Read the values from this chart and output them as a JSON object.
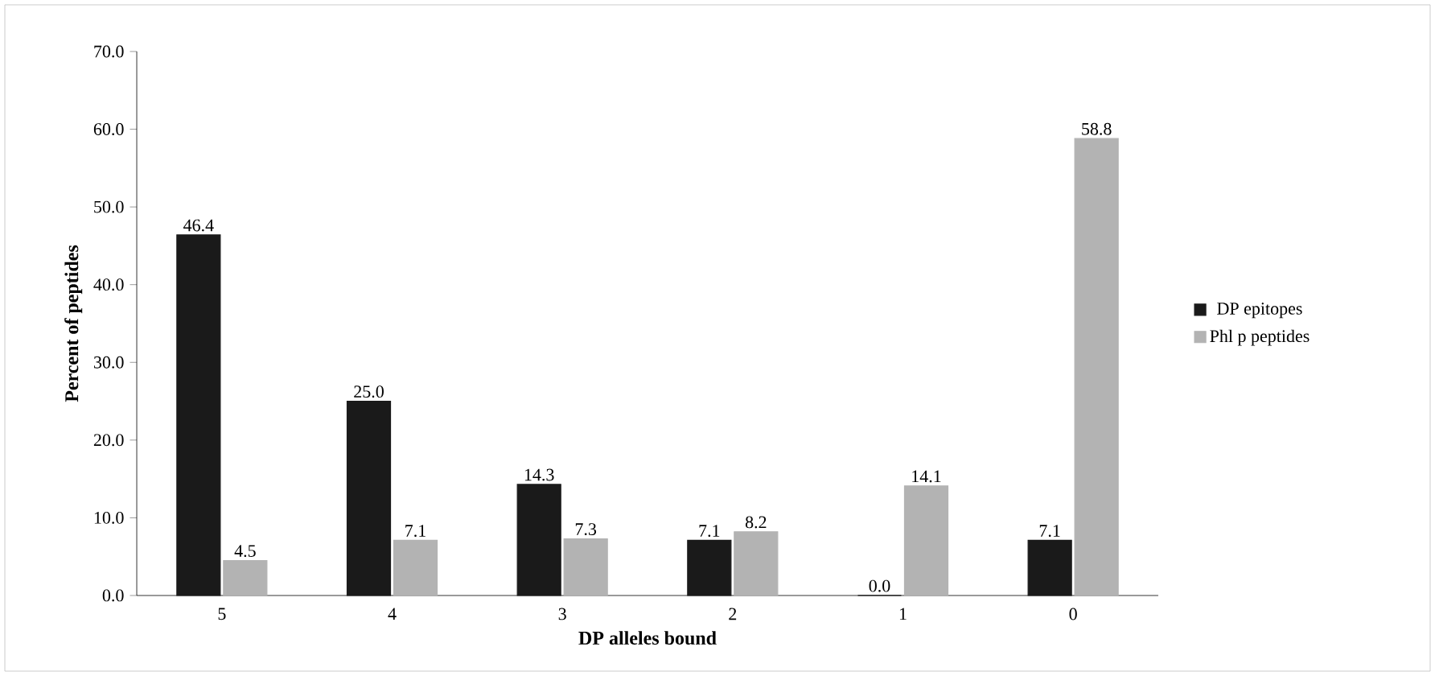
{
  "chart_data": {
    "type": "bar",
    "xlabel": "DP alleles bound",
    "ylabel": "Percent of peptides",
    "categories": [
      "5",
      "4",
      "3",
      "2",
      "1",
      "0"
    ],
    "series": [
      {
        "name": "DP epitopes",
        "color": "#1a1a1a",
        "values": [
          46.4,
          25.0,
          14.3,
          7.1,
          0.0,
          7.1
        ],
        "value_labels": [
          "46.4",
          "25.0",
          "14.3",
          "7.1",
          "0.0",
          "7.1"
        ]
      },
      {
        "name": "Phl p peptides",
        "color": "#b3b3b3",
        "values": [
          4.5,
          7.1,
          7.3,
          8.2,
          14.1,
          58.8
        ],
        "value_labels": [
          "4.5",
          "7.1",
          "7.3",
          "8.2",
          "14.1",
          "58.8"
        ]
      }
    ],
    "ylim": [
      0,
      70
    ],
    "yticks": [
      {
        "value": 0,
        "label": "0.0"
      },
      {
        "value": 10,
        "label": "10.0"
      },
      {
        "value": 20,
        "label": "20.0"
      },
      {
        "value": 30,
        "label": "30.0"
      },
      {
        "value": 40,
        "label": "40.0"
      },
      {
        "value": 50,
        "label": "50.0"
      },
      {
        "value": 60,
        "label": "60.0"
      },
      {
        "value": 70,
        "label": "70.0"
      }
    ],
    "legend": "right",
    "grid": false
  }
}
